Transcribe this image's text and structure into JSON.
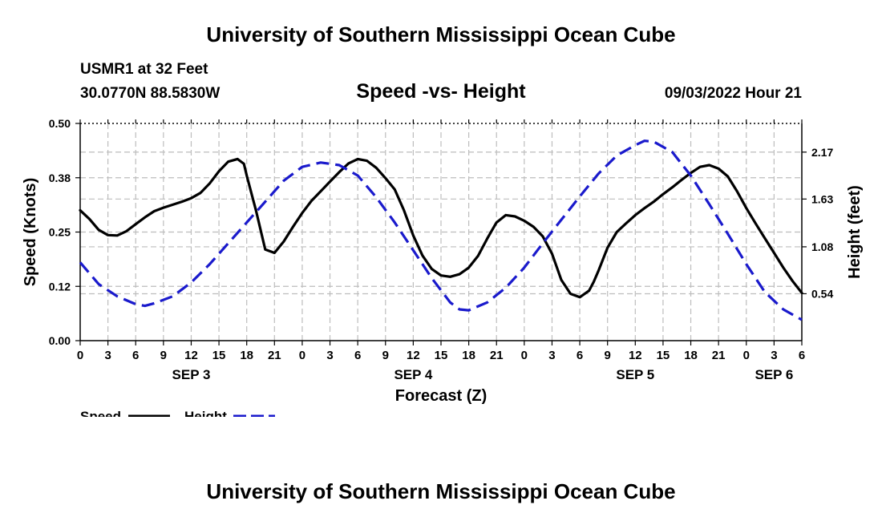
{
  "page": {
    "title_top": "University of Southern Mississippi Ocean Cube",
    "title_bottom": "University of Southern Mississippi Ocean Cube",
    "station": "USMR1 at 32 Feet",
    "coords": "30.0770N  88.5830W",
    "datetime": "09/03/2022 Hour 21"
  },
  "chart_data": {
    "type": "line",
    "title": "Speed -vs- Height",
    "xlabel": "Forecast (Z)",
    "ylabel": "Speed (Knots)",
    "y2label": "Height (feet)",
    "xlim": [
      0,
      78
    ],
    "ylim": [
      0,
      0.5
    ],
    "y2lim": [
      0,
      2.5
    ],
    "x_tick_values": [
      0,
      3,
      6,
      9,
      12,
      15,
      18,
      21,
      24,
      27,
      30,
      33,
      36,
      39,
      42,
      45,
      48,
      51,
      54,
      57,
      60,
      63,
      66,
      69,
      72,
      75,
      78
    ],
    "x_tick_labels": [
      "0",
      "3",
      "6",
      "9",
      "12",
      "15",
      "18",
      "21",
      "0",
      "3",
      "6",
      "9",
      "12",
      "15",
      "18",
      "21",
      "0",
      "3",
      "6",
      "9",
      "12",
      "15",
      "18",
      "21",
      "0",
      "3",
      "6"
    ],
    "y_ticks": [
      {
        "value": 0.0,
        "label": "0.00"
      },
      {
        "value": 0.125,
        "label": "0.12"
      },
      {
        "value": 0.25,
        "label": "0.25"
      },
      {
        "value": 0.375,
        "label": "0.38"
      },
      {
        "value": 0.5,
        "label": "0.50"
      }
    ],
    "y2_ticks": [
      {
        "value": 0.54,
        "label": "0.54"
      },
      {
        "value": 1.08,
        "label": "1.08"
      },
      {
        "value": 1.63,
        "label": "1.63"
      },
      {
        "value": 2.17,
        "label": "2.17"
      }
    ],
    "day_labels": [
      {
        "x": 12,
        "label": "SEP 3"
      },
      {
        "x": 36,
        "label": "SEP 4"
      },
      {
        "x": 60,
        "label": "SEP 5"
      },
      {
        "x": 75,
        "label": "SEP 6"
      }
    ],
    "series": [
      {
        "name": "Speed",
        "axis": "left",
        "color": "#000000",
        "style": "solid",
        "x": [
          0,
          1,
          2,
          3,
          4,
          5,
          6,
          7,
          8,
          9,
          10,
          11,
          12,
          13,
          14,
          15,
          16,
          17,
          17.7,
          18,
          19,
          20,
          21,
          22,
          23,
          24,
          25,
          26,
          27,
          28,
          29,
          30,
          31,
          32,
          33,
          34,
          35,
          36,
          37,
          38,
          39,
          40,
          41,
          42,
          43,
          44,
          45,
          46,
          47,
          48,
          49,
          50,
          51,
          52,
          53,
          54,
          55,
          55.5,
          56,
          57,
          58,
          59,
          60,
          61,
          62,
          63,
          64,
          65,
          66,
          67,
          68,
          69,
          70,
          71,
          72,
          73,
          74,
          75,
          76,
          77,
          78
        ],
        "values": [
          0.3,
          0.28,
          0.255,
          0.243,
          0.242,
          0.252,
          0.268,
          0.284,
          0.298,
          0.306,
          0.313,
          0.32,
          0.328,
          0.34,
          0.362,
          0.39,
          0.412,
          0.418,
          0.407,
          0.38,
          0.3,
          0.21,
          0.202,
          0.228,
          0.262,
          0.294,
          0.322,
          0.344,
          0.366,
          0.388,
          0.408,
          0.418,
          0.414,
          0.398,
          0.374,
          0.348,
          0.3,
          0.242,
          0.196,
          0.165,
          0.15,
          0.147,
          0.153,
          0.168,
          0.195,
          0.235,
          0.272,
          0.289,
          0.286,
          0.276,
          0.262,
          0.24,
          0.2,
          0.14,
          0.108,
          0.1,
          0.115,
          0.135,
          0.16,
          0.214,
          0.25,
          0.27,
          0.289,
          0.305,
          0.32,
          0.337,
          0.353,
          0.37,
          0.386,
          0.4,
          0.404,
          0.396,
          0.378,
          0.344,
          0.305,
          0.27,
          0.236,
          0.202,
          0.168,
          0.137,
          0.11
        ]
      },
      {
        "name": "Height",
        "axis": "right",
        "color": "#1a1acc",
        "style": "dashed",
        "x": [
          0,
          2,
          4,
          6,
          7,
          8,
          10,
          12,
          14,
          16,
          18,
          20,
          22,
          24,
          26,
          28,
          30,
          32,
          34,
          36,
          38,
          40,
          41,
          42,
          44,
          46,
          48,
          50,
          52,
          54,
          56,
          58,
          60,
          61,
          62,
          64,
          66,
          68,
          70,
          72,
          74,
          76,
          78
        ],
        "values": [
          0.9,
          0.65,
          0.51,
          0.42,
          0.4,
          0.43,
          0.51,
          0.67,
          0.88,
          1.12,
          1.36,
          1.6,
          1.84,
          2.0,
          2.05,
          2.02,
          1.9,
          1.65,
          1.36,
          1.04,
          0.72,
          0.44,
          0.36,
          0.35,
          0.44,
          0.61,
          0.84,
          1.12,
          1.39,
          1.66,
          1.92,
          2.13,
          2.25,
          2.3,
          2.29,
          2.17,
          1.9,
          1.57,
          1.23,
          0.88,
          0.56,
          0.36,
          0.24
        ]
      }
    ],
    "legend": [
      {
        "label": "Speed",
        "color": "#000000",
        "style": "solid"
      },
      {
        "label": "Height",
        "color": "#1a1acc",
        "style": "dashed"
      }
    ],
    "legend_position": "bottom-left",
    "grid": true
  }
}
